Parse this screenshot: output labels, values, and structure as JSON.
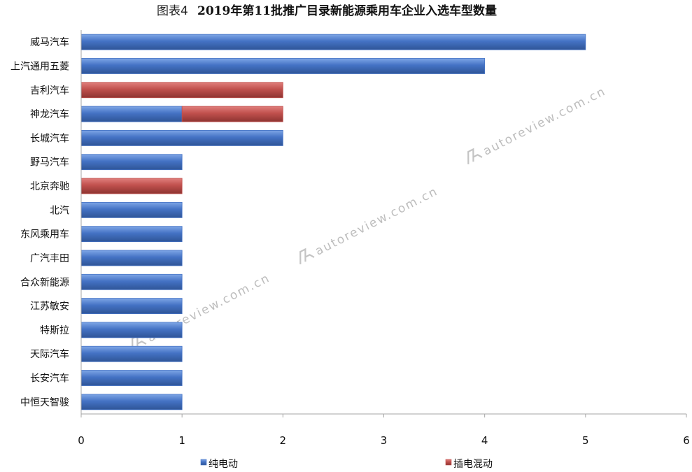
{
  "title": {
    "prefix": "图表4",
    "main": "2019年第11批推广目录新能源乘用车企业入选车型数量"
  },
  "watermark": {
    "text": "autoreview.com.cn",
    "icon": "autoreview-logo-icon"
  },
  "colors": {
    "bev": "#4472C4",
    "phev": "#C0504D",
    "axis": "#A6A6A6"
  },
  "chart_data": {
    "type": "bar",
    "orientation": "horizontal",
    "stacked": true,
    "categories": [
      "威马汽车",
      "上汽通用五菱",
      "吉利汽车",
      "神龙汽车",
      "长城汽车",
      "野马汽车",
      "北京奔驰",
      "北汽",
      "东风乘用车",
      "广汽丰田",
      "合众新能源",
      "江苏敏安",
      "特斯拉",
      "天际汽车",
      "长安汽车",
      "中恒天智骏"
    ],
    "series": [
      {
        "name": "纯电动",
        "values": [
          5,
          4,
          0,
          1,
          2,
          1,
          0,
          1,
          1,
          1,
          1,
          1,
          1,
          1,
          1,
          1
        ]
      },
      {
        "name": "插电混动",
        "values": [
          0,
          0,
          2,
          1,
          0,
          0,
          1,
          0,
          0,
          0,
          0,
          0,
          0,
          0,
          0,
          0
        ]
      }
    ],
    "xlim": [
      0,
      6
    ],
    "xticks": [
      "0",
      "1",
      "2",
      "3",
      "4",
      "5",
      "6"
    ],
    "legend_position": "bottom",
    "grid": false
  }
}
